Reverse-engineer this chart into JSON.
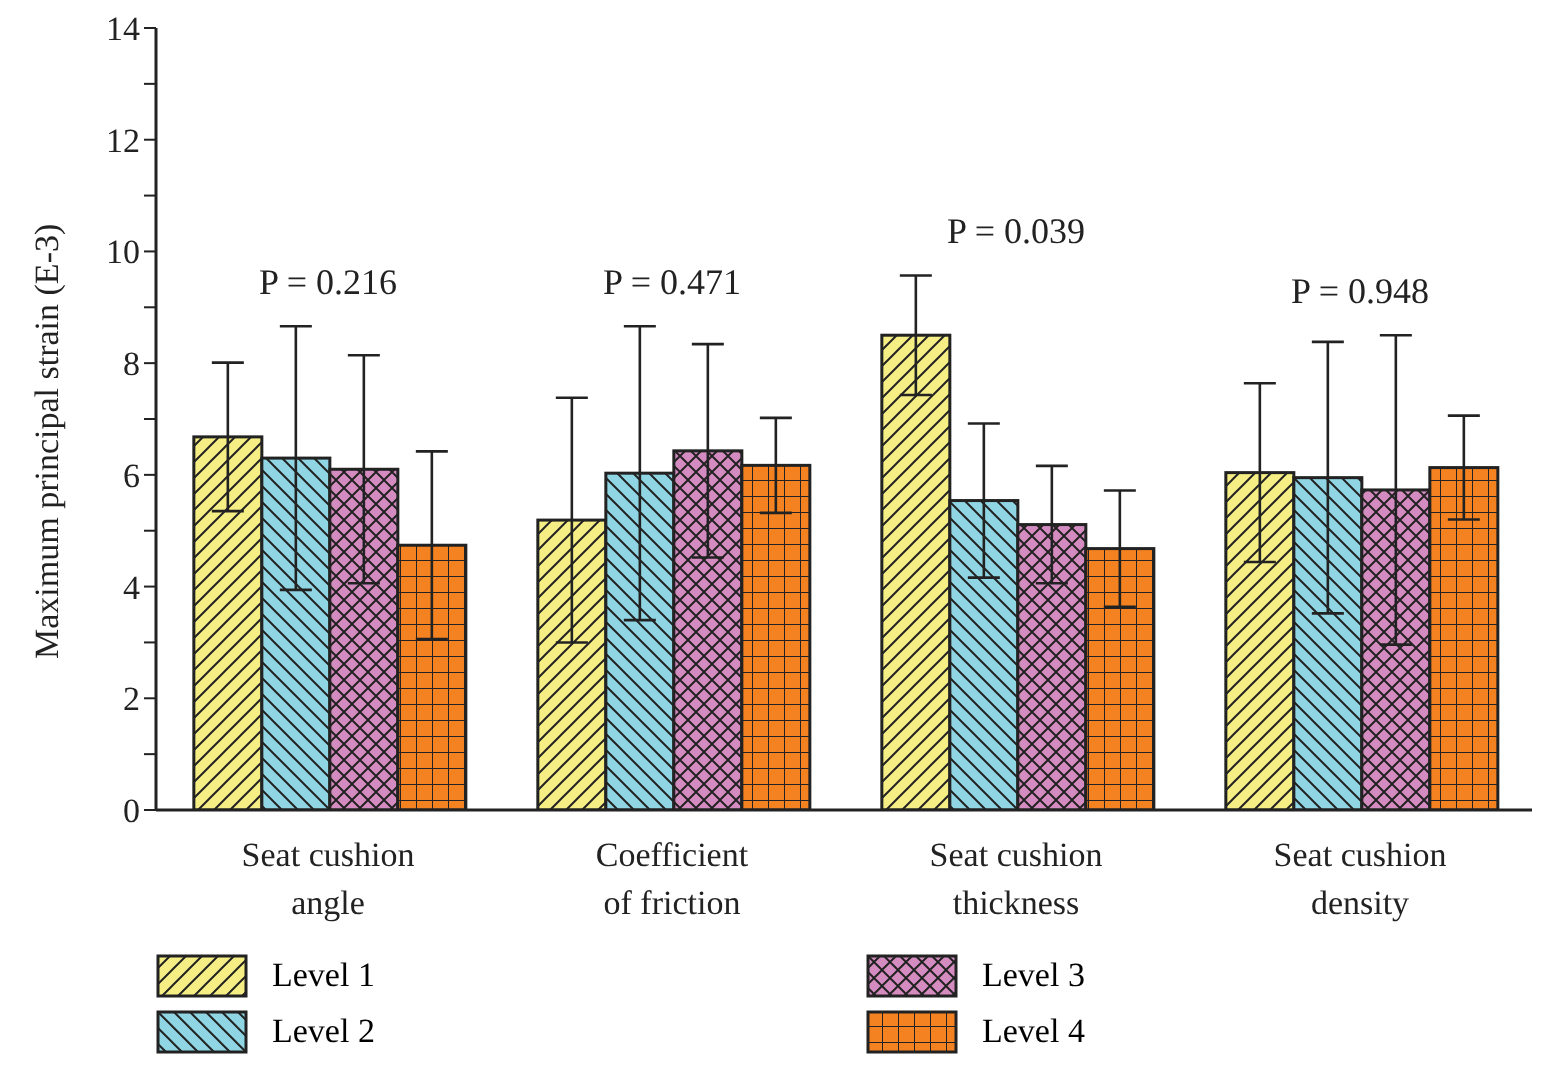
{
  "chart_data": {
    "type": "bar",
    "ylabel": "Maximum principal strain (E-3)",
    "categories": [
      "Seat cushion angle",
      "Coefficient of friction",
      "Seat cushion thickness",
      "Seat cushion density"
    ],
    "series": [
      {
        "name": "Level 1",
        "color": "#f5ee84",
        "values": [
          6.68,
          5.19,
          8.5,
          6.04
        ],
        "errors": [
          1.33,
          2.19,
          1.07,
          1.6
        ]
      },
      {
        "name": "Level 2",
        "color": "#8fd5e3",
        "values": [
          6.3,
          6.03,
          5.54,
          5.95
        ],
        "errors": [
          2.36,
          2.63,
          1.38,
          2.43
        ]
      },
      {
        "name": "Level 3",
        "color": "#d38bc0",
        "values": [
          6.1,
          6.43,
          5.11,
          5.73
        ],
        "errors": [
          2.04,
          1.91,
          1.05,
          2.77
        ]
      },
      {
        "name": "Level 4",
        "color": "#f58220",
        "values": [
          4.74,
          6.17,
          4.68,
          6.13
        ],
        "errors": [
          1.68,
          0.85,
          1.04,
          0.93
        ]
      }
    ],
    "ylim": [
      0,
      14
    ],
    "yticks": [
      0,
      {
        "value": 1,
        "label": null
      },
      2,
      {
        "value": 3,
        "label": null
      },
      4,
      {
        "value": 5,
        "label": null
      },
      6,
      {
        "value": 7,
        "label": null
      },
      8,
      {
        "value": 9,
        "label": null
      },
      10,
      {
        "value": 11,
        "label": null
      },
      12,
      {
        "value": 13,
        "label": null
      },
      14
    ],
    "annotations": [
      "P = 0.216",
      "P = 0.471",
      "P = 0.039",
      "P = 0.948"
    ],
    "legend": "bottom",
    "grid": false
  }
}
